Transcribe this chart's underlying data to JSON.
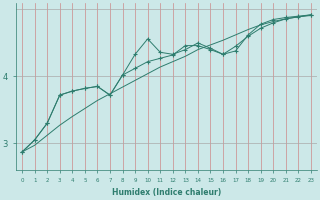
{
  "xlabel": "Humidex (Indice chaleur)",
  "background_color": "#cce8e8",
  "vgrid_color": "#cc8888",
  "hgrid_color": "#aaaaaa",
  "line_color": "#2e7d6e",
  "xlim": [
    -0.5,
    23.5
  ],
  "ylim": [
    2.6,
    5.1
  ],
  "yticks": [
    3,
    4
  ],
  "xticks": [
    0,
    1,
    2,
    3,
    4,
    5,
    6,
    7,
    8,
    9,
    10,
    11,
    12,
    13,
    14,
    15,
    16,
    17,
    18,
    19,
    20,
    21,
    22,
    23
  ],
  "series": [
    [
      2.87,
      3.05,
      3.3,
      3.72,
      3.78,
      3.82,
      3.85,
      3.72,
      4.02,
      4.33,
      4.56,
      4.36,
      4.33,
      4.4,
      4.5,
      4.42,
      4.33,
      4.38,
      4.62,
      4.78,
      4.85,
      4.88,
      4.9,
      4.92
    ],
    [
      2.87,
      3.05,
      3.3,
      3.72,
      3.78,
      3.82,
      3.85,
      3.72,
      4.02,
      4.12,
      4.22,
      4.27,
      4.32,
      4.46,
      4.46,
      4.4,
      4.33,
      4.45,
      4.6,
      4.72,
      4.8,
      4.86,
      4.89,
      4.91
    ],
    [
      2.87,
      2.97,
      3.12,
      3.27,
      3.4,
      3.52,
      3.64,
      3.74,
      3.84,
      3.94,
      4.04,
      4.14,
      4.22,
      4.3,
      4.4,
      4.47,
      4.54,
      4.62,
      4.7,
      4.77,
      4.82,
      4.86,
      4.89,
      4.92
    ]
  ]
}
